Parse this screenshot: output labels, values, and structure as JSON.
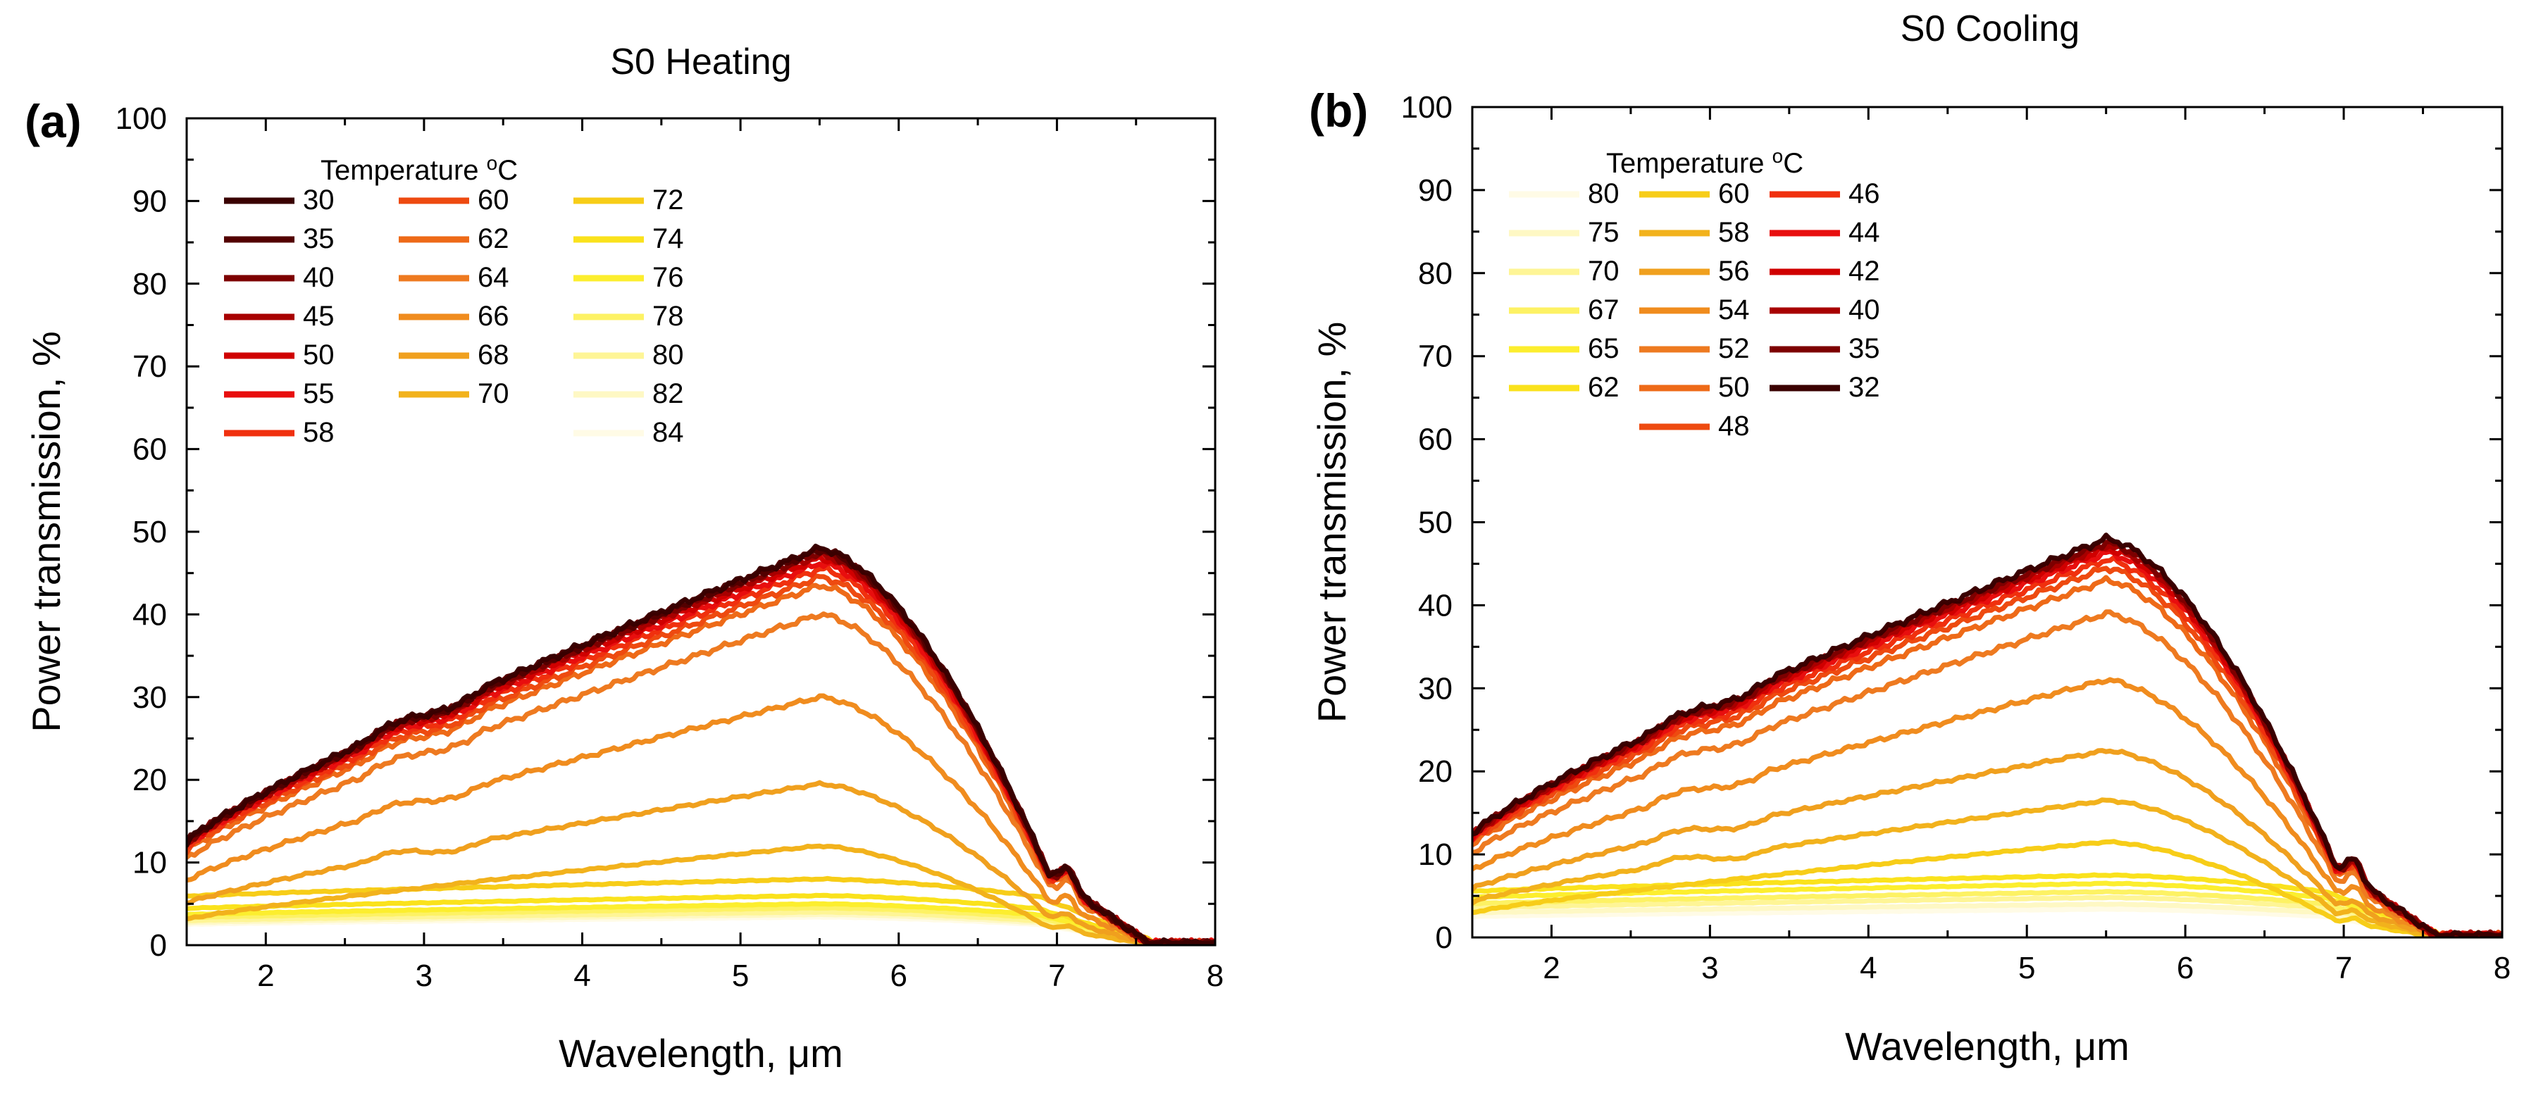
{
  "chart_data": [
    {
      "type": "line",
      "panel_label": "(a)",
      "title": "S0 Heating",
      "xlabel": "Wavelength, μm",
      "ylabel": "Power transmission, %",
      "xlim": [
        1.5,
        8
      ],
      "ylim": [
        0,
        100
      ],
      "xticks": [
        2,
        3,
        4,
        5,
        6,
        7,
        8
      ],
      "yticks": [
        0,
        10,
        20,
        30,
        40,
        50,
        60,
        70,
        80,
        90,
        100
      ],
      "legend": {
        "title": "Temperature",
        "title_unit": "°C",
        "placement": "top-left",
        "columns": 3
      },
      "series": [
        {
          "name": "30",
          "color": "#3a0000",
          "peak": 48
        },
        {
          "name": "35",
          "color": "#530000",
          "peak": 47.8
        },
        {
          "name": "40",
          "color": "#7d0000",
          "peak": 47.5
        },
        {
          "name": "45",
          "color": "#a80000",
          "peak": 47.2
        },
        {
          "name": "50",
          "color": "#d00000",
          "peak": 46.8
        },
        {
          "name": "55",
          "color": "#e80e0e",
          "peak": 46.2
        },
        {
          "name": "58",
          "color": "#f0300e",
          "peak": 45.5
        },
        {
          "name": "60",
          "color": "#ee4a10",
          "peak": 44.5
        },
        {
          "name": "62",
          "color": "#ee6a18",
          "peak": 43.5
        },
        {
          "name": "64",
          "color": "#ee7a20",
          "peak": 40
        },
        {
          "name": "66",
          "color": "#f08c1e",
          "peak": 30
        },
        {
          "name": "68",
          "color": "#f0a01e",
          "peak": 19.5
        },
        {
          "name": "70",
          "color": "#f2b21c",
          "peak": 12
        },
        {
          "name": "72",
          "color": "#f7cd18",
          "peak": 8
        },
        {
          "name": "74",
          "color": "#fae21c",
          "peak": 6
        },
        {
          "name": "76",
          "color": "#fcee2e",
          "peak": 5
        },
        {
          "name": "78",
          "color": "#fdf264",
          "peak": 4.5
        },
        {
          "name": "80",
          "color": "#fef596",
          "peak": 4
        },
        {
          "name": "82",
          "color": "#fef8c4",
          "peak": 3.7
        },
        {
          "name": "84",
          "color": "#fffbe6",
          "peak": 3.4
        }
      ]
    },
    {
      "type": "line",
      "panel_label": "(b)",
      "title": "S0 Cooling",
      "xlabel": "Wavelength, μm",
      "ylabel": "Power transmission, %",
      "xlim": [
        1.5,
        8
      ],
      "ylim": [
        0,
        100
      ],
      "xticks": [
        2,
        3,
        4,
        5,
        6,
        7,
        8
      ],
      "yticks": [
        0,
        10,
        20,
        30,
        40,
        50,
        60,
        70,
        80,
        90,
        100
      ],
      "legend": {
        "title": "Temperature",
        "title_unit": "°C",
        "placement": "top-left",
        "columns": 3
      },
      "series": [
        {
          "name": "80",
          "color": "#fffbe6",
          "peak": 3.4
        },
        {
          "name": "75",
          "color": "#fef8c4",
          "peak": 4
        },
        {
          "name": "70",
          "color": "#fef596",
          "peak": 4.8
        },
        {
          "name": "67",
          "color": "#fdf264",
          "peak": 5.5
        },
        {
          "name": "65",
          "color": "#fcee2e",
          "peak": 6.5
        },
        {
          "name": "62",
          "color": "#fae21c",
          "peak": 7.5
        },
        {
          "name": "60",
          "color": "#f7cd18",
          "peak": 11.5
        },
        {
          "name": "58",
          "color": "#f2b21c",
          "peak": 16.5
        },
        {
          "name": "56",
          "color": "#f0a01e",
          "peak": 22.5
        },
        {
          "name": "54",
          "color": "#f08c1e",
          "peak": 31
        },
        {
          "name": "52",
          "color": "#ee7a20",
          "peak": 39
        },
        {
          "name": "50",
          "color": "#ee6a18",
          "peak": 43
        },
        {
          "name": "48",
          "color": "#ee4a10",
          "peak": 44.5
        },
        {
          "name": "46",
          "color": "#f0300e",
          "peak": 45.5
        },
        {
          "name": "44",
          "color": "#e80e0e",
          "peak": 46.3
        },
        {
          "name": "42",
          "color": "#d00000",
          "peak": 46.8
        },
        {
          "name": "40",
          "color": "#a80000",
          "peak": 47.2
        },
        {
          "name": "35",
          "color": "#7d0000",
          "peak": 47.5
        },
        {
          "name": "32",
          "color": "#3a0000",
          "peak": 48
        }
      ]
    }
  ]
}
